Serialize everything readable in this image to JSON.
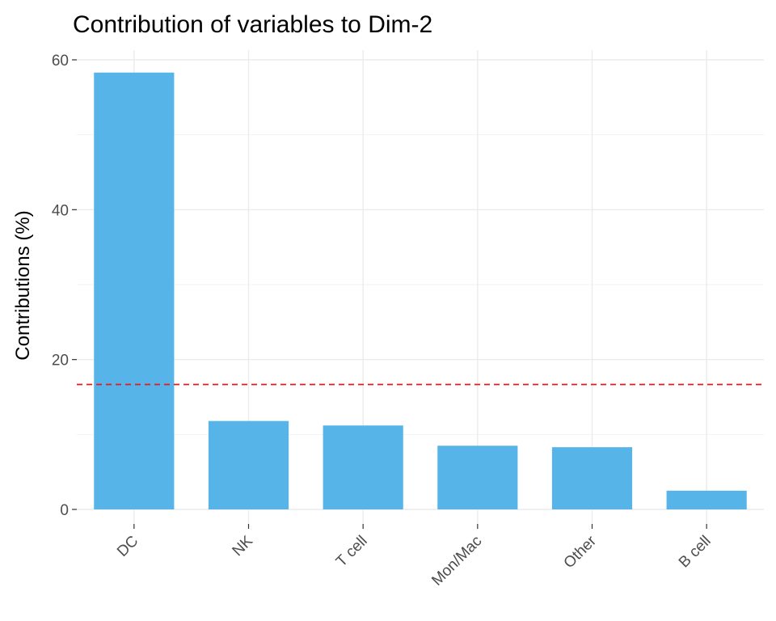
{
  "chart_data": {
    "type": "bar",
    "title": "Contribution of variables to Dim-2",
    "xlabel": "",
    "ylabel": "Contributions (%)",
    "categories": [
      "DC",
      "NK",
      "T cell",
      "Mon/Mac",
      "Other",
      "B cell"
    ],
    "values": [
      58.3,
      11.8,
      11.2,
      8.5,
      8.3,
      2.5
    ],
    "ylim": [
      0,
      61
    ],
    "yticks": [
      0,
      20,
      40,
      60
    ],
    "reference_line": 16.67,
    "grid": true,
    "bar_color": "#56B4E9",
    "reference_color": "#e41a1c"
  }
}
